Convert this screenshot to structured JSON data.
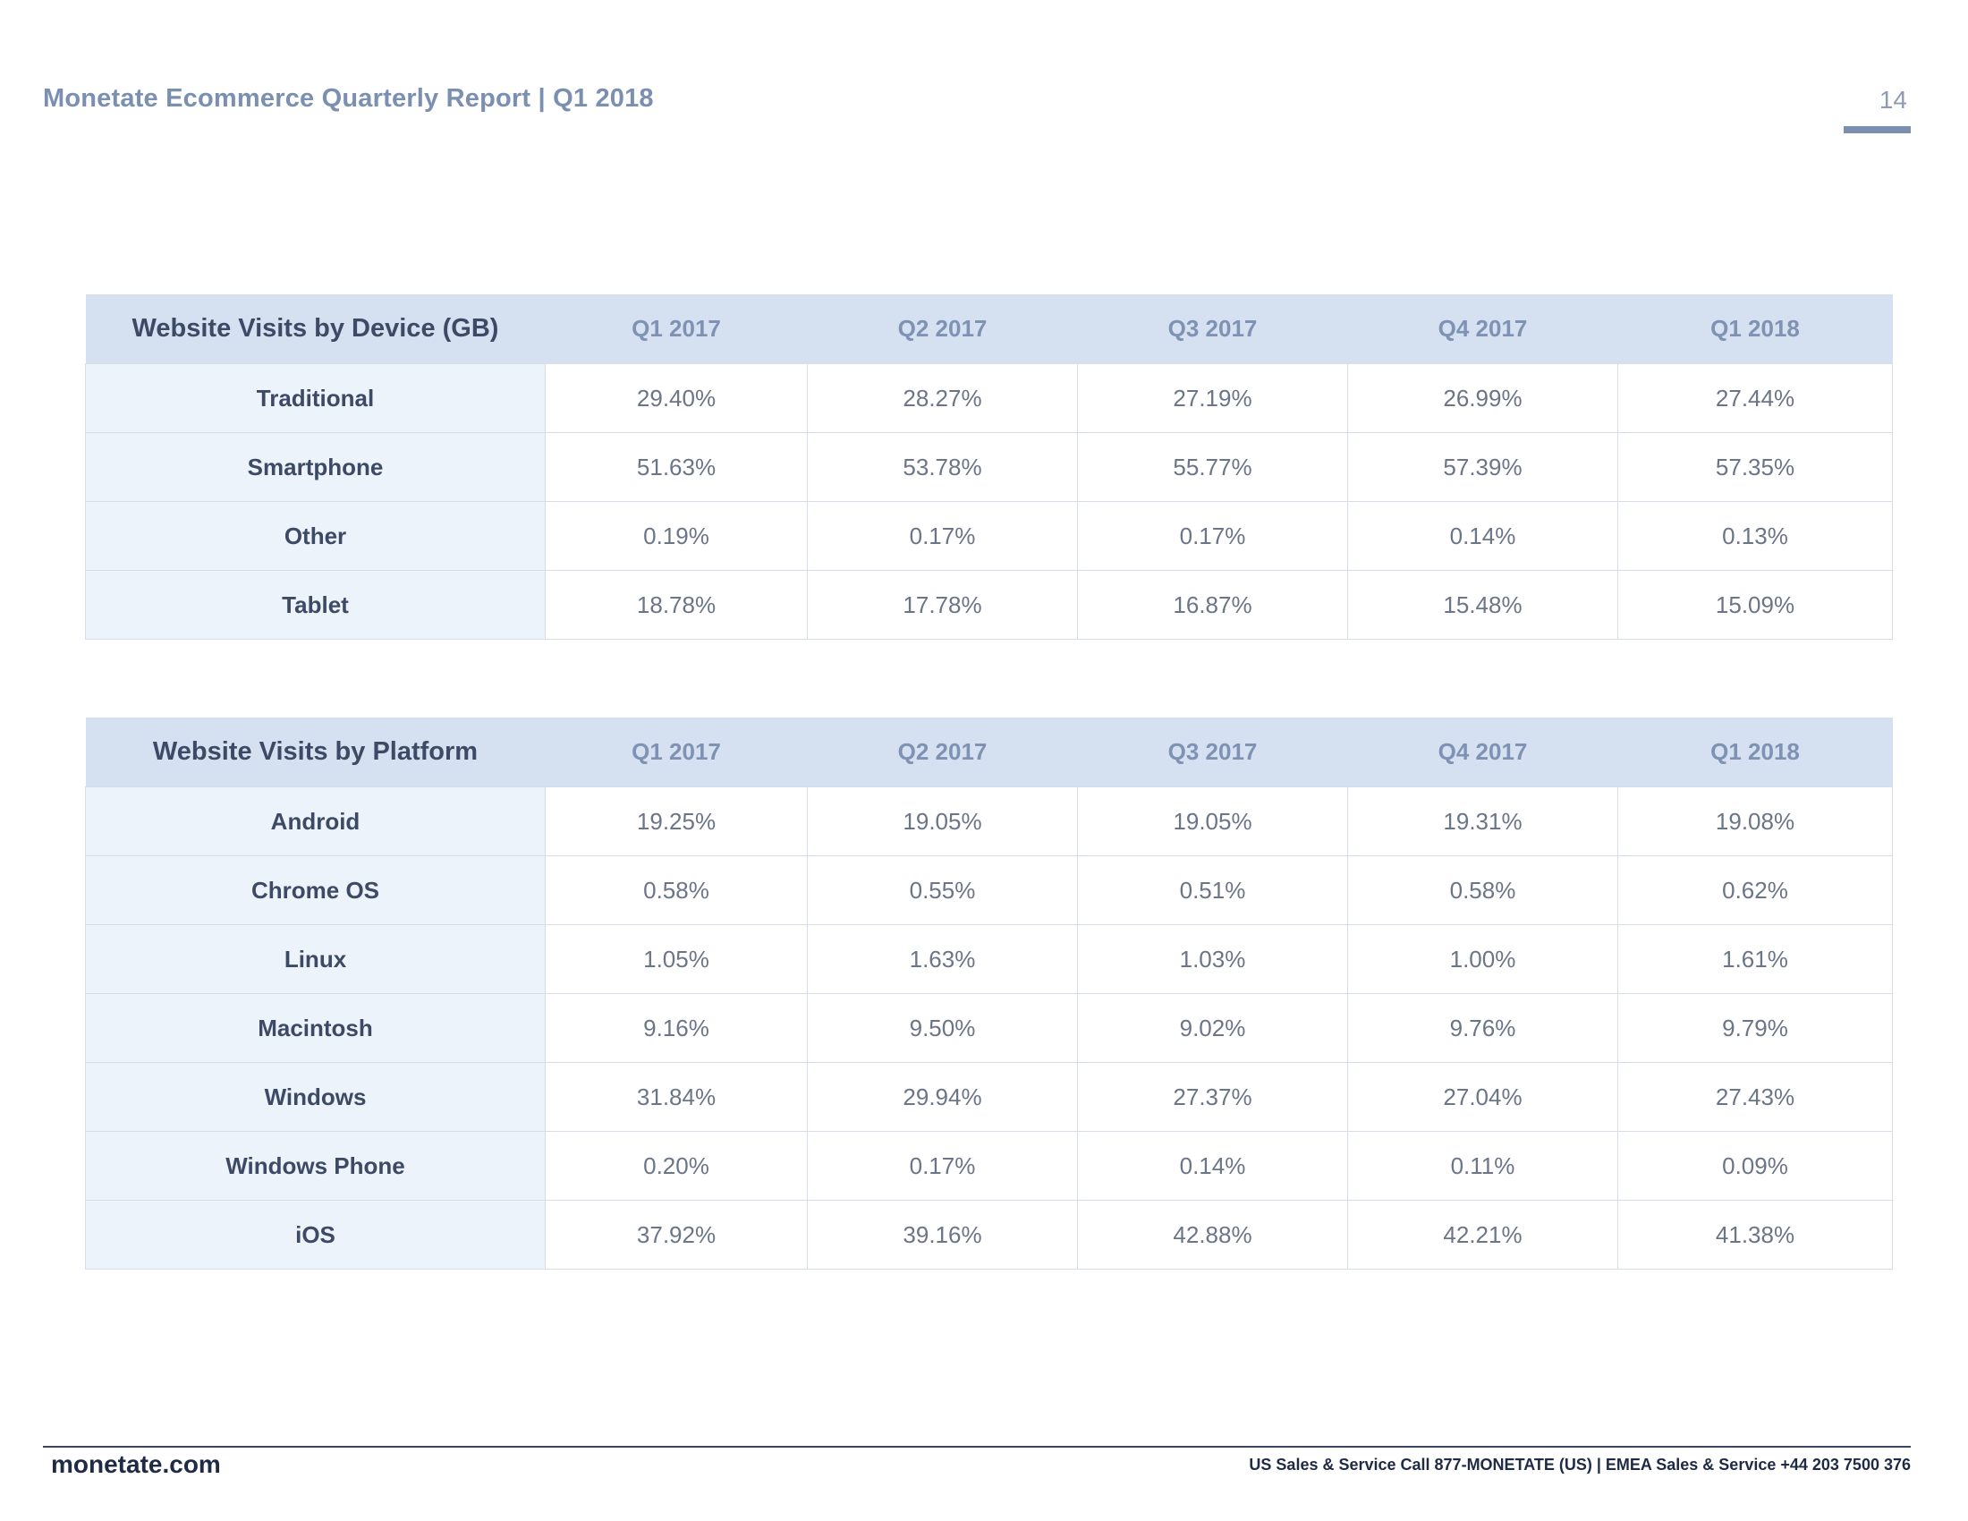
{
  "header": {
    "title": "Monetate Ecommerce Quarterly Report | Q1 2018",
    "page_number": "14"
  },
  "device_table": {
    "title": "Website Visits by Device (GB)",
    "columns": [
      "Q1 2017",
      "Q2 2017",
      "Q3 2017",
      "Q4 2017",
      "Q1 2018"
    ],
    "rows": [
      {
        "label": "Traditional",
        "values": [
          "29.40%",
          "28.27%",
          "27.19%",
          "26.99%",
          "27.44%"
        ]
      },
      {
        "label": "Smartphone",
        "values": [
          "51.63%",
          "53.78%",
          "55.77%",
          "57.39%",
          "57.35%"
        ]
      },
      {
        "label": "Other",
        "values": [
          "0.19%",
          "0.17%",
          "0.17%",
          "0.14%",
          "0.13%"
        ]
      },
      {
        "label": "Tablet",
        "values": [
          "18.78%",
          "17.78%",
          "16.87%",
          "15.48%",
          "15.09%"
        ]
      }
    ]
  },
  "platform_table": {
    "title": "Website Visits by Platform",
    "columns": [
      "Q1 2017",
      "Q2 2017",
      "Q3 2017",
      "Q4 2017",
      "Q1 2018"
    ],
    "rows": [
      {
        "label": "Android",
        "values": [
          "19.25%",
          "19.05%",
          "19.05%",
          "19.31%",
          "19.08%"
        ]
      },
      {
        "label": "Chrome OS",
        "values": [
          "0.58%",
          "0.55%",
          "0.51%",
          "0.58%",
          "0.62%"
        ]
      },
      {
        "label": "Linux",
        "values": [
          "1.05%",
          "1.63%",
          "1.03%",
          "1.00%",
          "1.61%"
        ]
      },
      {
        "label": "Macintosh",
        "values": [
          "9.16%",
          "9.50%",
          "9.02%",
          "9.76%",
          "9.79%"
        ]
      },
      {
        "label": "Windows",
        "values": [
          "31.84%",
          "29.94%",
          "27.37%",
          "27.04%",
          "27.43%"
        ]
      },
      {
        "label": "Windows Phone",
        "values": [
          "0.20%",
          "0.17%",
          "0.14%",
          "0.11%",
          "0.09%"
        ]
      },
      {
        "label": "iOS",
        "values": [
          "37.92%",
          "39.16%",
          "42.88%",
          "42.21%",
          "41.38%"
        ]
      }
    ]
  },
  "footer": {
    "site": "monetate.com",
    "contact": "US Sales & Service Call 877-MONETATE (US) | EMEA Sales & Service +44 203 7500 376"
  },
  "colors": {
    "header_band": "#d5e0f1",
    "label_column": "#edf3fb",
    "accent": "#7b8fb0"
  }
}
